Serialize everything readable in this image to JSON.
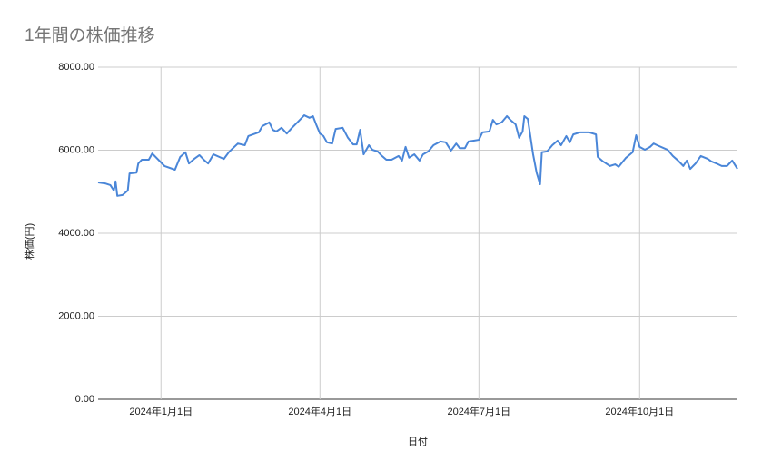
{
  "chart_data": {
    "type": "line",
    "title": "1年間の株価推移",
    "x_label": "日付",
    "y_label": "株価(円)",
    "x": [
      "2023-11-26",
      "2023-11-30",
      "2023-12-03",
      "2023-12-05",
      "2023-12-06",
      "2023-12-07",
      "2023-12-10",
      "2023-12-13",
      "2023-12-14",
      "2023-12-18",
      "2023-12-19",
      "2023-12-21",
      "2023-12-25",
      "2023-12-27",
      "2024-01-03",
      "2024-01-09",
      "2024-01-12",
      "2024-01-15",
      "2024-01-17",
      "2024-01-20",
      "2024-01-23",
      "2024-01-26",
      "2024-01-28",
      "2024-01-31",
      "2024-02-06",
      "2024-02-09",
      "2024-02-14",
      "2024-02-18",
      "2024-02-20",
      "2024-02-26",
      "2024-02-28",
      "2024-03-03",
      "2024-03-05",
      "2024-03-07",
      "2024-03-10",
      "2024-03-13",
      "2024-03-16",
      "2024-03-20",
      "2024-03-23",
      "2024-03-26",
      "2024-03-28",
      "2024-03-30",
      "2024-04-01",
      "2024-04-03",
      "2024-04-05",
      "2024-04-08",
      "2024-04-10",
      "2024-04-14",
      "2024-04-17",
      "2024-04-20",
      "2024-04-22",
      "2024-04-24",
      "2024-04-26",
      "2024-04-29",
      "2024-05-01",
      "2024-05-04",
      "2024-05-06",
      "2024-05-09",
      "2024-05-12",
      "2024-05-16",
      "2024-05-18",
      "2024-05-20",
      "2024-05-22",
      "2024-05-25",
      "2024-05-28",
      "2024-05-30",
      "2024-06-02",
      "2024-06-05",
      "2024-06-09",
      "2024-06-12",
      "2024-06-15",
      "2024-06-18",
      "2024-06-20",
      "2024-06-23",
      "2024-06-25",
      "2024-06-28",
      "2024-07-01",
      "2024-07-03",
      "2024-07-07",
      "2024-07-09",
      "2024-07-11",
      "2024-07-14",
      "2024-07-17",
      "2024-07-19",
      "2024-07-22",
      "2024-07-24",
      "2024-07-26",
      "2024-07-27",
      "2024-07-29",
      "2024-08-01",
      "2024-08-03",
      "2024-08-05",
      "2024-08-06",
      "2024-08-09",
      "2024-08-12",
      "2024-08-15",
      "2024-08-17",
      "2024-08-20",
      "2024-08-22",
      "2024-08-24",
      "2024-08-28",
      "2024-09-02",
      "2024-09-06",
      "2024-09-07",
      "2024-09-10",
      "2024-09-14",
      "2024-09-17",
      "2024-09-19",
      "2024-09-23",
      "2024-09-27",
      "2024-09-29",
      "2024-10-01",
      "2024-10-04",
      "2024-10-07",
      "2024-10-09",
      "2024-10-11",
      "2024-10-17",
      "2024-10-20",
      "2024-10-23",
      "2024-10-26",
      "2024-10-28",
      "2024-10-30",
      "2024-11-02",
      "2024-11-05",
      "2024-11-09",
      "2024-11-11",
      "2024-11-14",
      "2024-11-17",
      "2024-11-20",
      "2024-11-23",
      "2024-11-26"
    ],
    "series": [
      {
        "name": "株価(円)",
        "color": "#4a86d8",
        "values": [
          5224,
          5200,
          5160,
          5030,
          5250,
          4900,
          4920,
          5030,
          5440,
          5460,
          5680,
          5770,
          5770,
          5920,
          5620,
          5530,
          5840,
          5950,
          5680,
          5790,
          5880,
          5750,
          5680,
          5900,
          5790,
          5960,
          6160,
          6120,
          6340,
          6430,
          6580,
          6670,
          6490,
          6450,
          6540,
          6400,
          6540,
          6710,
          6840,
          6780,
          6820,
          6600,
          6400,
          6340,
          6190,
          6160,
          6510,
          6540,
          6300,
          6140,
          6140,
          6490,
          5900,
          6120,
          6010,
          5970,
          5880,
          5770,
          5770,
          5860,
          5750,
          6080,
          5820,
          5900,
          5750,
          5900,
          5970,
          6120,
          6210,
          6190,
          5990,
          6160,
          6050,
          6050,
          6210,
          6230,
          6250,
          6430,
          6450,
          6730,
          6620,
          6670,
          6820,
          6730,
          6620,
          6300,
          6450,
          6820,
          6750,
          5900,
          5460,
          5180,
          5950,
          5970,
          6120,
          6230,
          6120,
          6340,
          6190,
          6380,
          6430,
          6430,
          6380,
          5840,
          5730,
          5620,
          5660,
          5600,
          5810,
          5950,
          6360,
          6080,
          6010,
          6080,
          6160,
          6120,
          6010,
          5860,
          5750,
          5620,
          5750,
          5550,
          5680,
          5860,
          5790,
          5730,
          5680,
          5620,
          5620,
          5750,
          5550
        ]
      }
    ],
    "xlim": [
      "2023-11-26",
      "2024-11-26"
    ],
    "xticks": [
      {
        "value": "2024-01-01",
        "label": "2024年1月1日"
      },
      {
        "value": "2024-04-01",
        "label": "2024年4月1日"
      },
      {
        "value": "2024-07-01",
        "label": "2024年7月1日"
      },
      {
        "value": "2024-10-01",
        "label": "2024年10月1日"
      }
    ],
    "ylim": [
      0,
      8000
    ],
    "yticks": [
      {
        "value": 0,
        "label": "0.00"
      },
      {
        "value": 2000,
        "label": "2000.00"
      },
      {
        "value": 4000,
        "label": "4000.00"
      },
      {
        "value": 6000,
        "label": "6000.00"
      },
      {
        "value": 8000,
        "label": "8000.00"
      }
    ],
    "grid": true
  }
}
